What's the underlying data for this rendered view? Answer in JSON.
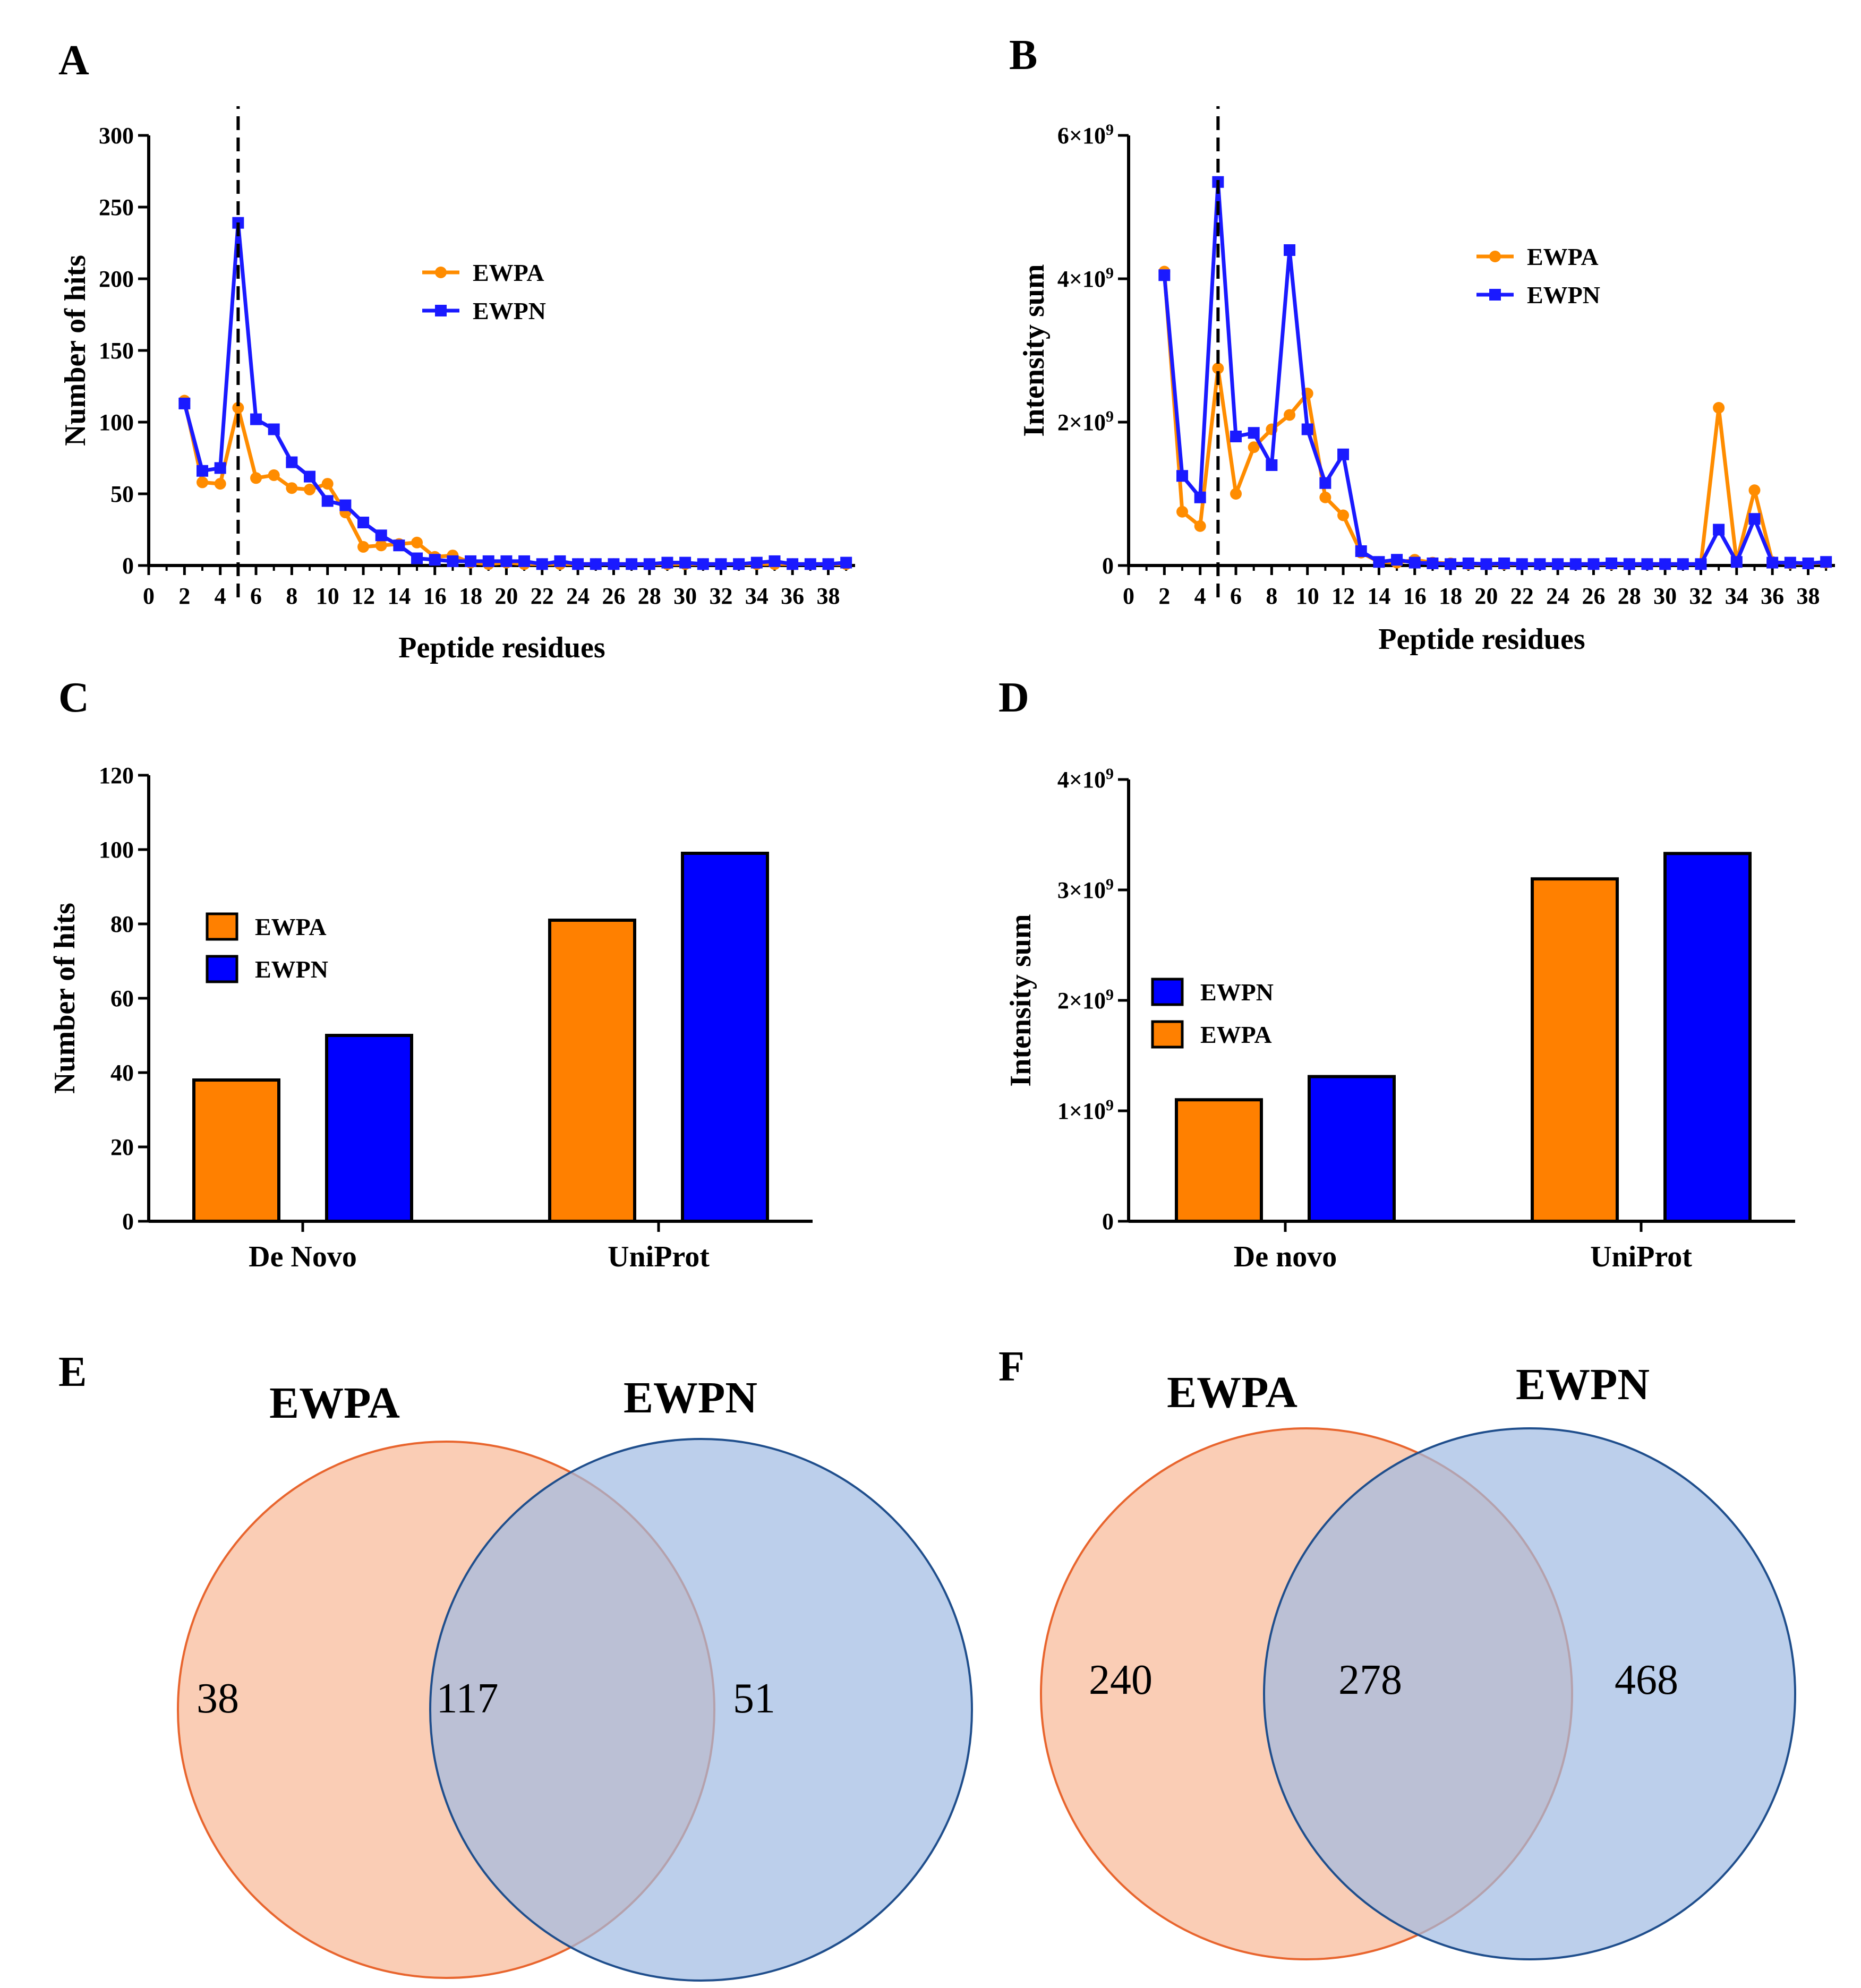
{
  "chart_data": [
    {
      "panel": "A",
      "type": "line",
      "xlabel": "Peptide residues",
      "ylabel": "Number of hits",
      "xlim": [
        0,
        39.5
      ],
      "ylim": [
        0,
        300
      ],
      "xticks": [
        "0",
        "2",
        "4",
        "6",
        "8",
        "10",
        "12",
        "14",
        "16",
        "18",
        "20",
        "22",
        "24",
        "26",
        "28",
        "30",
        "32",
        "34",
        "36",
        "38"
      ],
      "yticks": [
        "0",
        "50",
        "100",
        "150",
        "200",
        "250",
        "300"
      ],
      "marker_line_x": 5,
      "legend": [
        "EWPA",
        "EWPN"
      ],
      "x": [
        2,
        3,
        4,
        5,
        6,
        7,
        8,
        9,
        10,
        11,
        12,
        13,
        14,
        15,
        16,
        17,
        18,
        19,
        20,
        21,
        22,
        23,
        24,
        25,
        26,
        27,
        28,
        29,
        30,
        31,
        32,
        33,
        34,
        35,
        36,
        37,
        38,
        39
      ],
      "series": [
        {
          "name": "EWPA",
          "color": "#ff8c00",
          "marker": "circle",
          "values": [
            115,
            58,
            57,
            110,
            61,
            63,
            54,
            53,
            57,
            37,
            13,
            14,
            15,
            16,
            6,
            7,
            2,
            1,
            2,
            1,
            1,
            1,
            1,
            1,
            1,
            1,
            1,
            1,
            1,
            1,
            1,
            1,
            1,
            1,
            1,
            1,
            1,
            1
          ]
        },
        {
          "name": "EWPN",
          "color": "#1a1aff",
          "marker": "square",
          "values": [
            113,
            66,
            68,
            239,
            102,
            95,
            72,
            62,
            45,
            42,
            30,
            21,
            14,
            5,
            4,
            3,
            3,
            3,
            3,
            3,
            1,
            3,
            1,
            1,
            1,
            1,
            1,
            2,
            2,
            1,
            1,
            1,
            2,
            3,
            1,
            1,
            1,
            2
          ]
        }
      ]
    },
    {
      "panel": "B",
      "type": "line",
      "xlabel": "Peptide residues",
      "ylabel": "Intensity sum",
      "xlim": [
        0,
        39.5
      ],
      "ylim": [
        0,
        6
      ],
      "y_unit_exponent": 9,
      "xticks": [
        "0",
        "2",
        "4",
        "6",
        "8",
        "10",
        "12",
        "14",
        "16",
        "18",
        "20",
        "22",
        "24",
        "26",
        "28",
        "30",
        "32",
        "34",
        "36",
        "38"
      ],
      "yticks": [
        "0",
        "2×10",
        "4×10",
        "6×10"
      ],
      "ytick_exponent": "9",
      "marker_line_x": 5,
      "legend": [
        "EWPA",
        "EWPN"
      ],
      "x": [
        2,
        3,
        4,
        5,
        6,
        7,
        8,
        9,
        10,
        11,
        12,
        13,
        14,
        15,
        16,
        17,
        18,
        19,
        20,
        21,
        22,
        23,
        24,
        25,
        26,
        27,
        28,
        29,
        30,
        31,
        32,
        33,
        34,
        35,
        36,
        37,
        38,
        39
      ],
      "series": [
        {
          "name": "EWPA",
          "color": "#ff8c00",
          "marker": "circle",
          "values": [
            4.1,
            0.75,
            0.55,
            2.75,
            1.0,
            1.65,
            1.9,
            2.1,
            2.4,
            0.95,
            0.7,
            0.18,
            0.05,
            0.04,
            0.08,
            0.04,
            0.03,
            0.02,
            0.02,
            0.02,
            0.02,
            0.02,
            0.02,
            0.02,
            0.02,
            0.02,
            0.02,
            0.02,
            0.02,
            0.02,
            0.02,
            2.2,
            0.05,
            1.05,
            0.05,
            0.03,
            0.03,
            0.04
          ]
        },
        {
          "name": "EWPN",
          "color": "#1a1aff",
          "marker": "square",
          "values": [
            4.05,
            1.25,
            0.95,
            5.35,
            1.8,
            1.85,
            1.4,
            4.4,
            1.9,
            1.15,
            1.55,
            0.2,
            0.05,
            0.08,
            0.04,
            0.03,
            0.02,
            0.03,
            0.02,
            0.03,
            0.02,
            0.02,
            0.02,
            0.02,
            0.02,
            0.03,
            0.02,
            0.02,
            0.02,
            0.02,
            0.02,
            0.5,
            0.05,
            0.65,
            0.04,
            0.04,
            0.03,
            0.05
          ]
        }
      ]
    },
    {
      "panel": "C",
      "type": "bar",
      "ylabel": "Number of hits",
      "ylim": [
        0,
        120
      ],
      "yticks": [
        "0",
        "20",
        "40",
        "60",
        "80",
        "100",
        "120"
      ],
      "categories": [
        "De Novo",
        "UniProt"
      ],
      "legend": [
        "EWPA",
        "EWPN"
      ],
      "series": [
        {
          "name": "EWPA",
          "color": "#ff8000",
          "values": [
            38,
            81
          ]
        },
        {
          "name": "EWPN",
          "color": "#0000ff",
          "values": [
            50,
            99
          ]
        }
      ]
    },
    {
      "panel": "D",
      "type": "bar",
      "ylabel": "Intensity sum",
      "ylim": [
        0,
        4
      ],
      "y_unit_exponent": 9,
      "yticks": [
        "0",
        "1×10",
        "2×10",
        "3×10",
        "4×10"
      ],
      "ytick_exponent": "9",
      "categories": [
        "De novo",
        "UniProt"
      ],
      "legend": [
        "EWPN",
        "EWPA"
      ],
      "series": [
        {
          "name": "EWPA",
          "color": "#ff8000",
          "values": [
            1.1,
            3.1
          ]
        },
        {
          "name": "EWPN",
          "color": "#0000ff",
          "values": [
            1.31,
            3.33
          ]
        }
      ]
    },
    {
      "panel": "E",
      "type": "venn",
      "sets": [
        {
          "name": "EWPA",
          "only": "38",
          "fill": "#f8b896",
          "stroke": "#e8652e"
        },
        {
          "name": "EWPN",
          "only": "51",
          "fill": "#9fbbe3",
          "stroke": "#1f4e8c"
        }
      ],
      "intersection": "117"
    },
    {
      "panel": "F",
      "type": "venn",
      "sets": [
        {
          "name": "EWPA",
          "only": "240",
          "fill": "#f8b896",
          "stroke": "#e8652e"
        },
        {
          "name": "EWPN",
          "only": "468",
          "fill": "#9fbbe3",
          "stroke": "#1f4e8c"
        }
      ],
      "intersection": "278"
    }
  ]
}
